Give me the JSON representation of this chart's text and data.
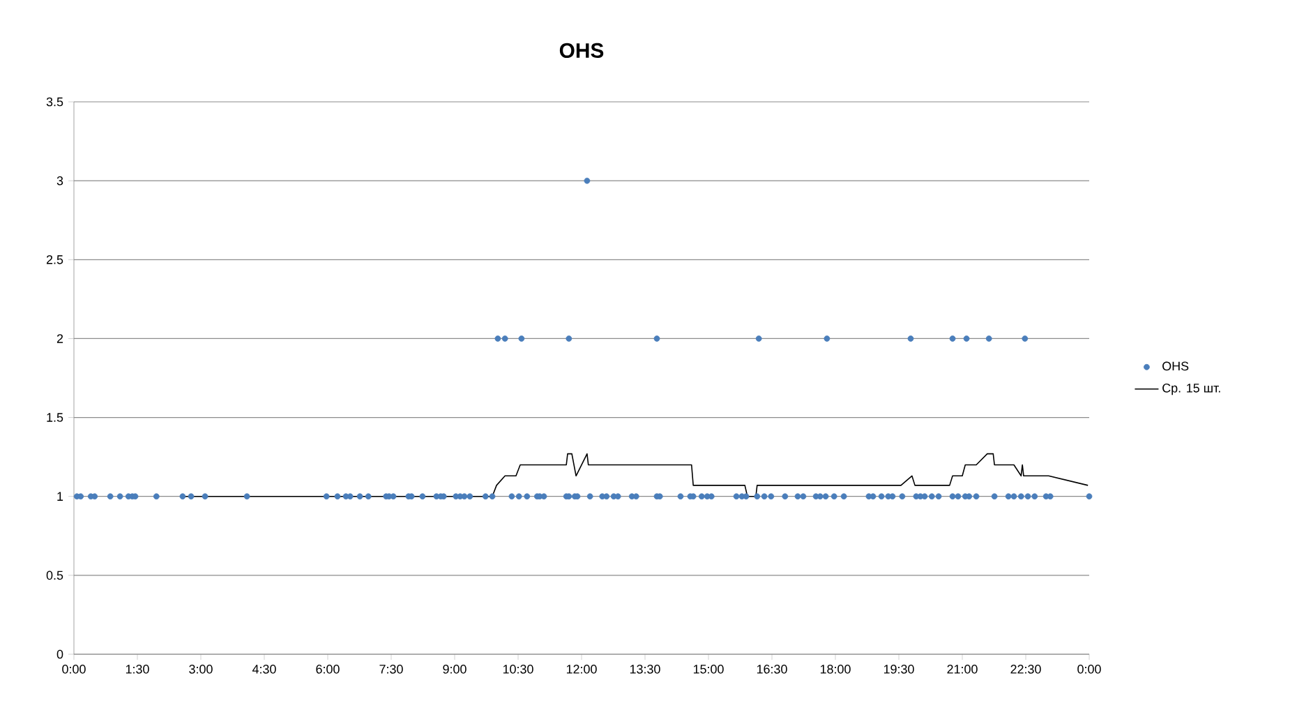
{
  "chart_data": {
    "type": "scatter",
    "title": "OHS",
    "xlim": [
      0,
      24
    ],
    "ylim": [
      0,
      3.5
    ],
    "xticks": [
      {
        "value": 0,
        "label": "0:00"
      },
      {
        "value": 1.5,
        "label": "1:30"
      },
      {
        "value": 3,
        "label": "3:00"
      },
      {
        "value": 4.5,
        "label": "4:30"
      },
      {
        "value": 6,
        "label": "6:00"
      },
      {
        "value": 7.5,
        "label": "7:30"
      },
      {
        "value": 9,
        "label": "9:00"
      },
      {
        "value": 10.5,
        "label": "10:30"
      },
      {
        "value": 12,
        "label": "12:00"
      },
      {
        "value": 13.5,
        "label": "13:30"
      },
      {
        "value": 15,
        "label": "15:00"
      },
      {
        "value": 16.5,
        "label": "16:30"
      },
      {
        "value": 18,
        "label": "18:00"
      },
      {
        "value": 19.5,
        "label": "19:30"
      },
      {
        "value": 21,
        "label": "21:00"
      },
      {
        "value": 22.5,
        "label": "22:30"
      },
      {
        "value": 24,
        "label": "0:00"
      }
    ],
    "yticks": [
      0,
      0.5,
      1,
      1.5,
      2,
      2.5,
      3,
      3.5
    ],
    "grid": "y",
    "legend": "right",
    "series": [
      {
        "name": "OHS",
        "marker": "circle",
        "color": "#4a7ebb",
        "x": [
          0.07,
          0.16,
          0.4,
          0.49,
          0.86,
          1.09,
          1.29,
          1.38,
          1.45,
          1.95,
          2.57,
          2.77,
          3.1,
          4.09,
          5.97,
          6.23,
          6.43,
          6.53,
          6.76,
          6.96,
          7.38,
          7.45,
          7.55,
          7.91,
          7.98,
          8.24,
          8.57,
          8.67,
          8.74,
          9.03,
          9.13,
          9.23,
          9.36,
          9.73,
          9.89,
          10.02,
          10.19,
          10.35,
          10.52,
          10.58,
          10.71,
          10.95,
          11.01,
          11.11,
          11.64,
          11.7,
          11.7,
          11.84,
          11.9,
          12.13,
          12.2,
          12.49,
          12.59,
          12.76,
          12.86,
          13.19,
          13.29,
          13.78,
          13.78,
          13.85,
          14.34,
          14.57,
          14.64,
          14.84,
          14.97,
          15.07,
          15.66,
          15.79,
          15.89,
          16.15,
          16.19,
          16.32,
          16.48,
          16.81,
          17.11,
          17.24,
          17.54,
          17.64,
          17.77,
          17.8,
          17.97,
          18.2,
          18.79,
          18.89,
          19.09,
          19.25,
          19.35,
          19.58,
          19.78,
          19.91,
          20.01,
          20.11,
          20.28,
          20.44,
          20.77,
          20.77,
          20.9,
          21.07,
          21.1,
          21.16,
          21.33,
          21.63,
          21.76,
          22.09,
          22.22,
          22.39,
          22.48,
          22.55,
          22.71,
          22.98,
          23.08,
          24.0
        ],
        "values": [
          1,
          1,
          1,
          1,
          1,
          1,
          1,
          1,
          1,
          1,
          1,
          1,
          1,
          1,
          1,
          1,
          1,
          1,
          1,
          1,
          1,
          1,
          1,
          1,
          1,
          1,
          1,
          1,
          1,
          1,
          1,
          1,
          1,
          1,
          1,
          2,
          2,
          1,
          1,
          2,
          1,
          1,
          1,
          1,
          1,
          1,
          2,
          1,
          1,
          3,
          1,
          1,
          1,
          1,
          1,
          1,
          1,
          1,
          2,
          1,
          1,
          1,
          1,
          1,
          1,
          1,
          1,
          1,
          1,
          1,
          2,
          1,
          1,
          1,
          1,
          1,
          1,
          1,
          1,
          2,
          1,
          1,
          1,
          1,
          1,
          1,
          1,
          1,
          2,
          1,
          1,
          1,
          1,
          1,
          1,
          2,
          1,
          1,
          2,
          1,
          1,
          2,
          1,
          1,
          1,
          1,
          2,
          1,
          1,
          1,
          1,
          1
        ]
      },
      {
        "name": "Ср. 15 шт.",
        "type": "line",
        "marker": "none",
        "color": "#000000",
        "x": [
          2.57,
          9.89,
          9.99,
          10.19,
          10.45,
          10.55,
          11.64,
          11.67,
          11.77,
          11.87,
          12.13,
          12.16,
          14.6,
          14.64,
          15.86,
          15.92,
          16.12,
          16.15,
          19.55,
          19.81,
          19.88,
          20.7,
          20.77,
          21.0,
          21.07,
          21.33,
          21.59,
          21.73,
          21.76,
          22.22,
          22.39,
          22.42,
          22.45,
          23.04,
          23.97
        ],
        "values": [
          1,
          1,
          1.07,
          1.13,
          1.13,
          1.2,
          1.2,
          1.27,
          1.27,
          1.13,
          1.27,
          1.2,
          1.2,
          1.07,
          1.07,
          1,
          1,
          1.07,
          1.07,
          1.13,
          1.07,
          1.07,
          1.13,
          1.13,
          1.2,
          1.2,
          1.27,
          1.27,
          1.2,
          1.2,
          1.13,
          1.2,
          1.13,
          1.13,
          1.07
        ]
      }
    ]
  }
}
